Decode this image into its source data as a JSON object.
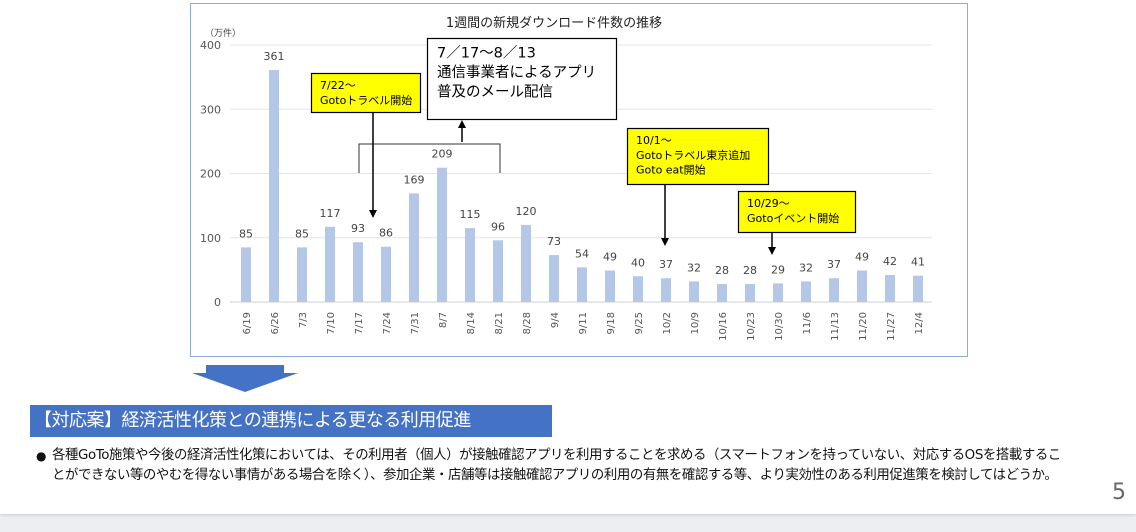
{
  "chart_data": {
    "type": "bar",
    "title": "1週間の新規ダウンロード件数の推移",
    "ylabel": "（万件）",
    "xlabel": "",
    "ylim": [
      0,
      400
    ],
    "yticks": [
      0,
      100,
      200,
      300,
      400
    ],
    "grid": true,
    "categories": [
      "6/19",
      "6/26",
      "7/3",
      "7/10",
      "7/17",
      "7/24",
      "7/31",
      "8/7",
      "8/14",
      "8/21",
      "8/28",
      "9/4",
      "9/11",
      "9/18",
      "9/25",
      "10/2",
      "10/9",
      "10/16",
      "10/23",
      "10/30",
      "11/6",
      "11/13",
      "11/20",
      "11/27",
      "12/4"
    ],
    "values": [
      85,
      361,
      85,
      117,
      93,
      86,
      169,
      209,
      115,
      96,
      120,
      73,
      54,
      49,
      40,
      37,
      32,
      28,
      28,
      29,
      32,
      37,
      49,
      42,
      41
    ],
    "bar_color": "#b4c7e7",
    "annotations": [
      {
        "id": "goto-travel",
        "lines": [
          "7/22～",
          "Gotoトラベル開始"
        ],
        "style": "yellow",
        "points_to": "7/24"
      },
      {
        "id": "carrier-mail",
        "lines": [
          "7／17～8／13",
          "通信事業者によるアプリ",
          "普及のメール配信"
        ],
        "style": "white",
        "range": [
          "7/17",
          "8/14"
        ]
      },
      {
        "id": "goto-tokyo-eat",
        "lines": [
          "10/1～",
          "Gotoトラベル東京追加",
          "Goto eat開始"
        ],
        "style": "yellow",
        "points_to": "10/2"
      },
      {
        "id": "goto-event",
        "lines": [
          "10/29～",
          "Gotoイベント開始"
        ],
        "style": "yellow",
        "points_to": "10/30"
      }
    ]
  },
  "proposal": {
    "heading": "【対応案】経済活性化策との連携による更なる利用促進",
    "bullet_symbol": "●",
    "bullet": "各種GoTo施策や今後の経済活性化策においては、その利用者（個人）が接触確認アプリを利用することを求める（スマートフォンを持っていない、対応するOSを搭載することができない等のやむを得ない事情がある場合を除く）、参加企業・店舗等は接触確認アプリの利用の有無を確認する等、より実効性のある利用促進策を検討してはどうか。"
  },
  "page_number": "5",
  "colors": {
    "accent": "#4472c4",
    "annotation_yellow": "#ffff00",
    "frame": "#8eaadb"
  }
}
